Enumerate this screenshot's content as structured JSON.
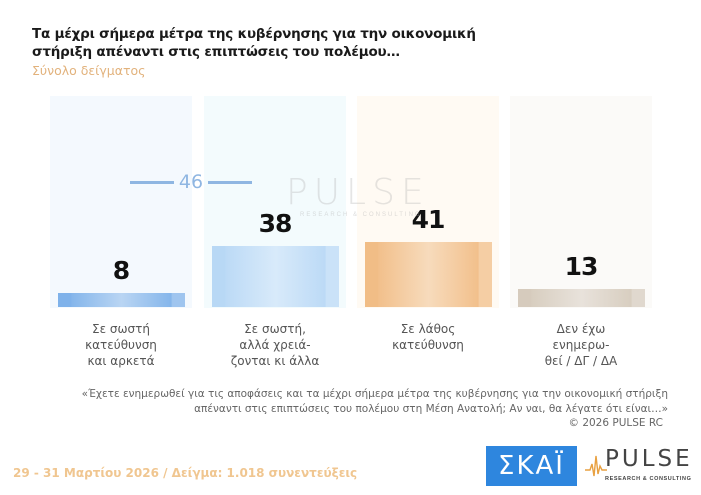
{
  "header": {
    "title": "Τα μέχρι σήμερα μέτρα της κυβέρνησης για την οικονομική στήριξη απέναντι στις επιπτώσεις του πολέμου…",
    "subtitle": "Σύνολο δείγματος"
  },
  "chart_data": {
    "type": "bar",
    "title": "Τα μέχρι σήμερα μέτρα της κυβέρνησης για την οικονομική στήριξη απέναντι στις επιπτώσεις του πολέμου…",
    "subtitle": "Σύνολο δείγματος",
    "categories": [
      "Σε σωστή κατεύθυνση και αρκετά",
      "Σε σωστή, αλλά χρειάζονται κι άλλα",
      "Σε λάθος κατεύθυνση",
      "Δεν έχω ενημερωθεί / ΔΓ / ΔΑ"
    ],
    "category_lines": [
      [
        "Σε σωστή",
        "κατεύθυνση",
        "και αρκετά"
      ],
      [
        "Σε σωστή,",
        "αλλά χρειά-",
        "ζονται κι άλλα"
      ],
      [
        "Σε λάθος",
        "κατεύθυνση"
      ],
      [
        "Δεν έχω",
        "ενημερω-",
        "θεί / ΔΓ / ΔΑ"
      ]
    ],
    "values": [
      8,
      38,
      41,
      13
    ],
    "value_labels": [
      "8",
      "38",
      "41",
      "13"
    ],
    "colors": [
      "#7fb2ea",
      "#b8d8f5",
      "#f1bd86",
      "#d6cbbd"
    ],
    "background_colors": [
      "#f4f9fe",
      "#f3fbfd",
      "#fffaf3",
      "#fbfaf8"
    ],
    "combined_annotation": {
      "categories": [
        0,
        1
      ],
      "value": 46,
      "label": "46",
      "color": "#8fb6e2"
    },
    "xlabel": "",
    "ylabel": "",
    "ylim": [
      0,
      100
    ],
    "grid": false,
    "legend": "none"
  },
  "watermark": {
    "word": "PULSE",
    "sub": "RESEARCH & CONSULTING"
  },
  "question": {
    "line1": "«Έχετε ενημερωθεί για τις αποφάσεις και τα μέχρι σήμερα  μέτρα της κυβέρνησης για την οικονομική στήριξη",
    "line2": "απέναντι στις επιπτώσεις του πολέμου στη Μέση Ανατολή; Αν ναι, θα λέγατε ότι είναι…»"
  },
  "copyright": "©  2026  PULSE RC",
  "footer": "29 - 31  Μαρτίου 2026  /  Δείγμα:  1.018 συνεντεύξεις",
  "logos": {
    "skai": "ΣΚΑΪ",
    "pulse": "PULSE",
    "pulse_sub": "RESEARCH & CONSULTING"
  }
}
